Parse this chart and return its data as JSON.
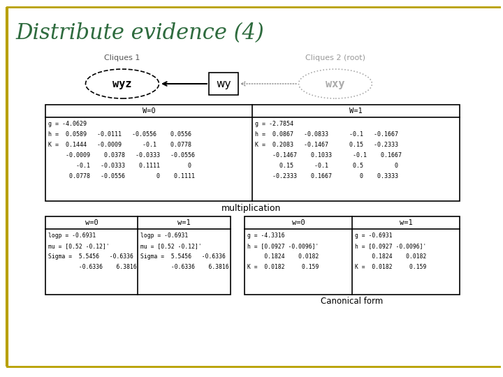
{
  "title": "Distribute evidence (4)",
  "title_color": "#2e6b3e",
  "title_fontsize": 22,
  "bg_color": "#ffffff",
  "border_color": "#b8a000",
  "cliques1_label": "Cliques 1",
  "cliques2_label": "Cliques 2 (root)",
  "node_wyz": "wyz",
  "node_wy": "wy",
  "node_wxy": "wxy",
  "table1_header_left": "W=0",
  "table1_header_right": "W=1",
  "table1_w0_lines": [
    "g = -4.0629",
    "h =  0.0589   -0.0111   -0.0556    0.0556",
    "K =  0.1444   -0.0009      -0.1    0.0778",
    "     -0.0009    0.0378   -0.0333   -0.0556",
    "        -0.1   -0.0333    0.1111        0",
    "      0.0778   -0.0556         0    0.1111"
  ],
  "table1_w1_lines": [
    "g = -2.7854",
    "h =  0.0867   -0.0833      -0.1   -0.1667",
    "K =  0.2083   -0.1467      0.15   -0.2333",
    "     -0.1467    0.1033      -0.1    0.1667",
    "       0.15      -0.1       0.5         0",
    "     -0.2333    0.1667        0    0.3333"
  ],
  "mult_label": "multiplication",
  "table2_w0_lines": [
    "logp = -0.6931",
    "mu = [0.52 -0.12]'",
    "Sigma =  5.5456   -0.6336",
    "         -0.6336    6.3816"
  ],
  "table2_w1_lines": [
    "logp = -0.6931",
    "mu = [0.52 -0.12]'",
    "Sigma =  5.5456   -0.6336",
    "         -0.6336    6.3816"
  ],
  "table3_w0_lines": [
    "g = -4.3316",
    "h = [0.0927 -0.0096]'",
    "     0.1824    0.0182",
    "K =  0.0182     0.159"
  ],
  "table3_w1_lines": [
    "g = -0.6931",
    "h = [0.0927 -0.0096]'",
    "     0.1824    0.0182",
    "K =  0.0182     0.159"
  ],
  "canonical_label": "Canonical form",
  "table2_header_left": "w=0",
  "table2_header_right": "w=1",
  "table3_header_left": "w=0",
  "table3_header_right": "w=1"
}
